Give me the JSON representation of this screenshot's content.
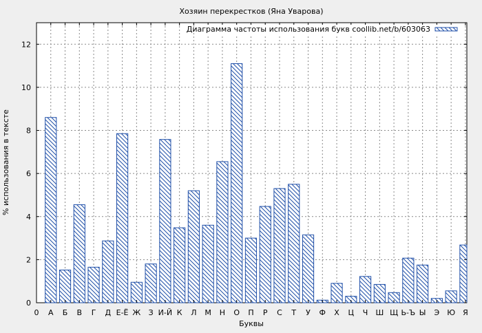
{
  "chart_data": {
    "type": "bar",
    "title": "Хозяин перекрестков (Яна Уварова)",
    "xlabel": "Буквы",
    "ylabel": "% использования в тексте",
    "ylim": [
      0,
      13
    ],
    "yticks": [
      0,
      2,
      4,
      6,
      8,
      10,
      12
    ],
    "grid": true,
    "legend_position": "top-right",
    "x_axis_start_label": "0",
    "categories": [
      "А",
      "Б",
      "В",
      "Г",
      "Д",
      "Е-Ё",
      "Ж",
      "З",
      "И-Й",
      "К",
      "Л",
      "М",
      "Н",
      "О",
      "П",
      "Р",
      "С",
      "Т",
      "У",
      "Ф",
      "Х",
      "Ц",
      "Ч",
      "Ш",
      "Щ",
      "Ь-Ъ",
      "Ы",
      "Э",
      "Ю",
      "Я"
    ],
    "series": [
      {
        "name": "Диаграмма частоты использования букв coollib.net/b/603063",
        "color": "#1f4fa8",
        "values": [
          8.6,
          1.52,
          4.55,
          1.65,
          2.87,
          7.85,
          0.95,
          1.8,
          7.58,
          3.48,
          5.2,
          3.6,
          6.55,
          11.1,
          3.0,
          4.47,
          5.3,
          5.5,
          3.15,
          0.12,
          0.9,
          0.3,
          1.22,
          0.85,
          0.47,
          2.07,
          1.75,
          0.2,
          0.55,
          2.68
        ]
      }
    ]
  }
}
